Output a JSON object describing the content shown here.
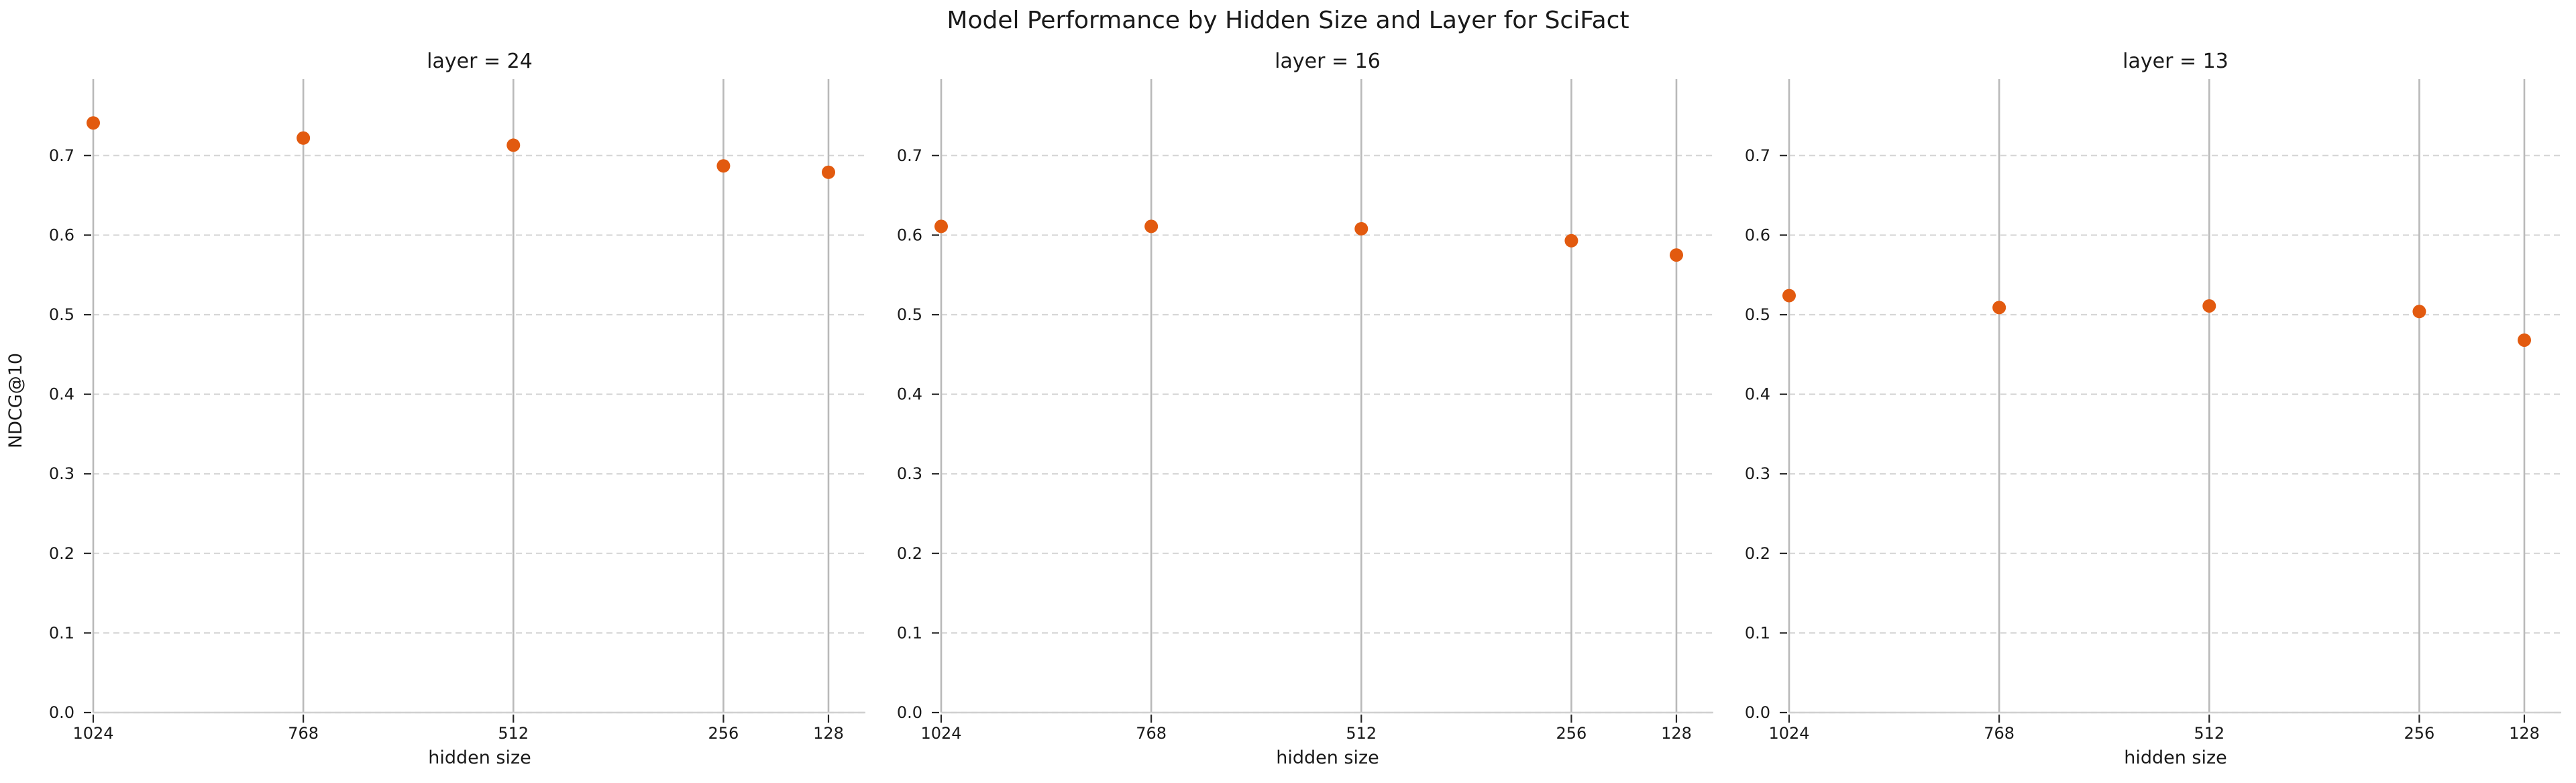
{
  "chart_data": {
    "type": "scatter",
    "title": "Model Performance by Hidden Size and Layer for SciFact",
    "xlabel": "hidden size",
    "ylabel": "NDCG@10",
    "x_values": [
      1024,
      768,
      512,
      256,
      128
    ],
    "x_axis": {
      "scale": "linear",
      "inverted": true,
      "tick_labels": [
        "1024",
        "768",
        "512",
        "256",
        "128"
      ]
    },
    "ylim": [
      0.0,
      0.8
    ],
    "yticks": [
      0.0,
      0.1,
      0.2,
      0.3,
      0.4,
      0.5,
      0.6,
      0.7
    ],
    "ytick_labels": [
      "0.0",
      "0.1",
      "0.2",
      "0.3",
      "0.4",
      "0.5",
      "0.6",
      "0.7"
    ],
    "grid": {
      "vertical": "solid",
      "horizontal": "dashed",
      "visible": true
    },
    "legend": "none",
    "panels": [
      {
        "title": "layer = 24",
        "layer": 24,
        "values": [
          0.741,
          0.722,
          0.713,
          0.687,
          0.679
        ]
      },
      {
        "title": "layer = 16",
        "layer": 16,
        "values": [
          0.611,
          0.611,
          0.608,
          0.593,
          0.575
        ]
      },
      {
        "title": "layer = 13",
        "layer": 13,
        "values": [
          0.524,
          0.509,
          0.511,
          0.504,
          0.468
        ]
      }
    ],
    "marker": {
      "shape": "circle",
      "color": "#e25a0f",
      "radius_px": 10
    }
  },
  "colors": {
    "background": "#ffffff",
    "marker_orange": "#e25a0f",
    "vertical_grid": "#b9b9b9",
    "dashed_grid": "#d6d6d6",
    "axis_spine": "#d0d0d0",
    "tick_mark": "#262626",
    "text": "#1a1a1a"
  }
}
